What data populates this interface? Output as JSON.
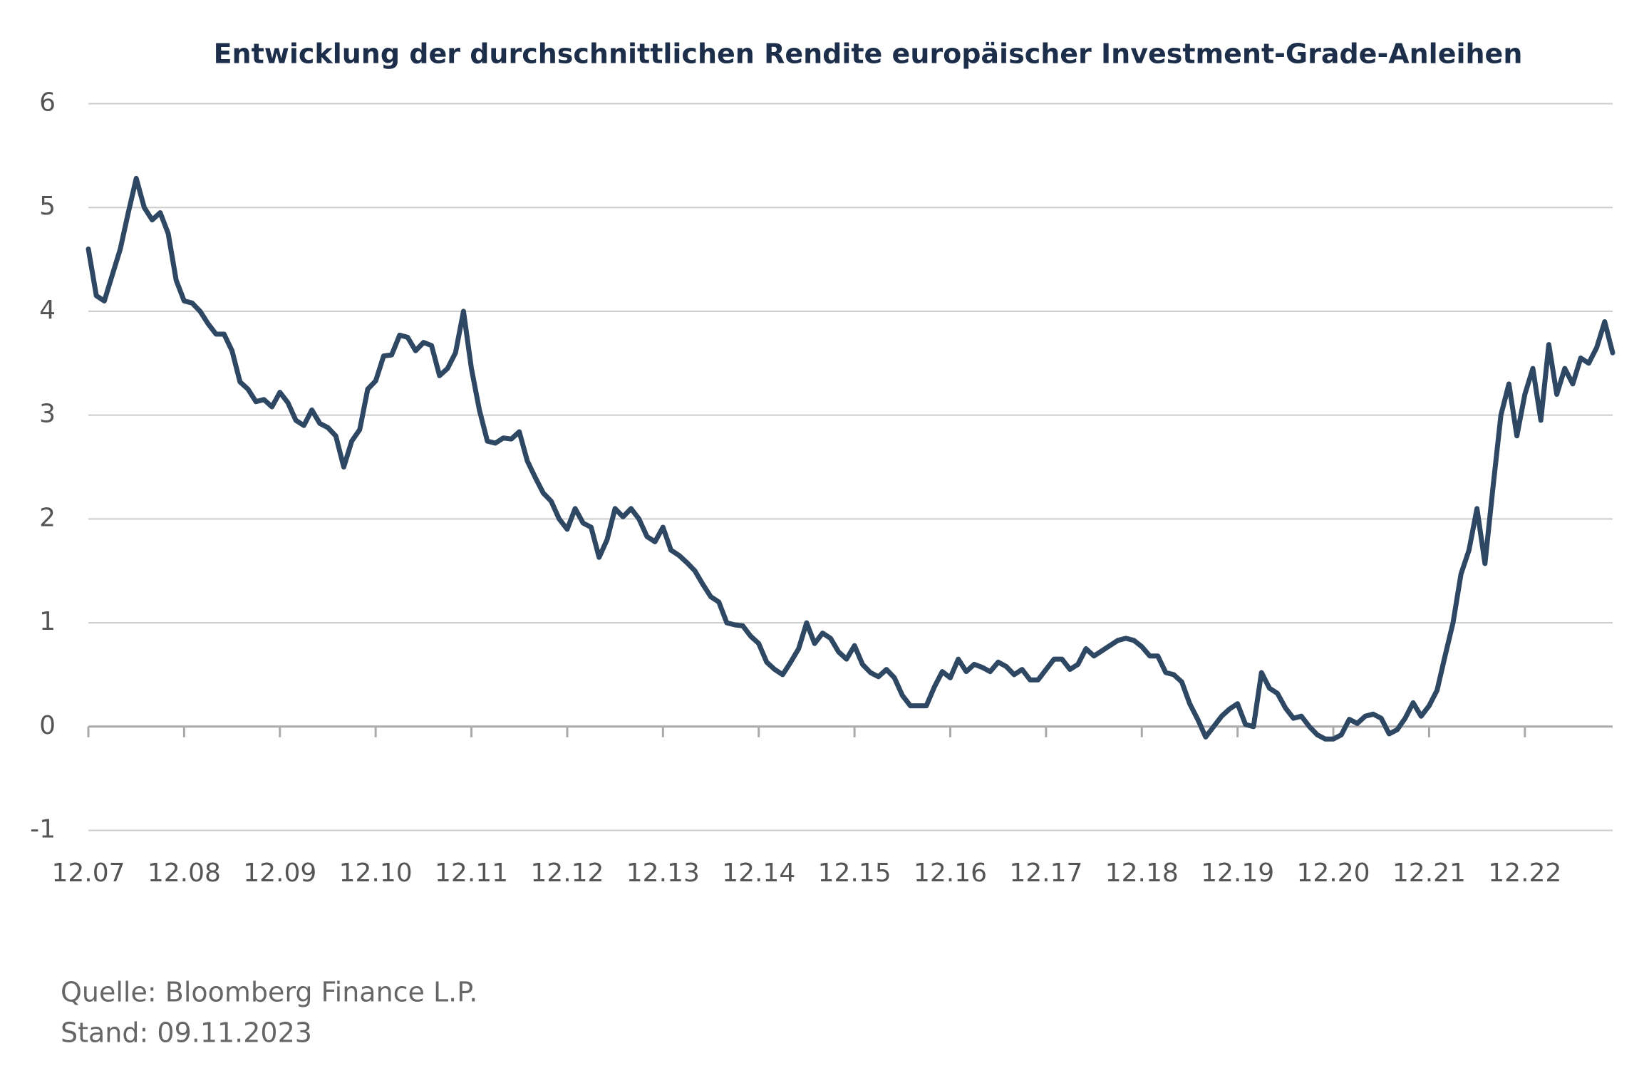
{
  "chart_data": {
    "type": "line",
    "title": "Entwicklung der durchschnittlichen Rendite europäischer Investment-Grade-Anleihen",
    "notes": [
      "Quelle: Bloomberg Finance L.P.",
      "Stand: 09.11.2023"
    ],
    "x": [
      "12.07",
      "01.08",
      "02.08",
      "03.08",
      "04.08",
      "05.08",
      "06.08",
      "07.08",
      "08.08",
      "09.08",
      "10.08",
      "11.08",
      "12.08",
      "01.09",
      "02.09",
      "03.09",
      "04.09",
      "05.09",
      "06.09",
      "07.09",
      "08.09",
      "09.09",
      "10.09",
      "11.09",
      "12.09",
      "01.10",
      "02.10",
      "03.10",
      "04.10",
      "05.10",
      "06.10",
      "07.10",
      "08.10",
      "09.10",
      "10.10",
      "11.10",
      "12.10",
      "01.11",
      "02.11",
      "03.11",
      "04.11",
      "05.11",
      "06.11",
      "07.11",
      "08.11",
      "09.11",
      "10.11",
      "11.11",
      "12.11",
      "01.12",
      "02.12",
      "03.12",
      "04.12",
      "05.12",
      "06.12",
      "07.12",
      "08.12",
      "09.12",
      "10.12",
      "11.12",
      "12.12",
      "01.13",
      "02.13",
      "03.13",
      "04.13",
      "05.13",
      "06.13",
      "07.13",
      "08.13",
      "09.13",
      "10.13",
      "11.13",
      "12.13",
      "01.14",
      "02.14",
      "03.14",
      "04.14",
      "05.14",
      "06.14",
      "07.14",
      "08.14",
      "09.14",
      "10.14",
      "11.14",
      "12.14",
      "01.15",
      "02.15",
      "03.15",
      "04.15",
      "05.15",
      "06.15",
      "07.15",
      "08.15",
      "09.15",
      "10.15",
      "11.15",
      "12.15",
      "01.16",
      "02.16",
      "03.16",
      "04.16",
      "05.16",
      "06.16",
      "07.16",
      "08.16",
      "09.16",
      "10.16",
      "11.16",
      "12.16",
      "01.17",
      "02.17",
      "03.17",
      "04.17",
      "05.17",
      "06.17",
      "07.17",
      "08.17",
      "09.17",
      "10.17",
      "11.17",
      "12.17",
      "01.18",
      "02.18",
      "03.18",
      "04.18",
      "05.18",
      "06.18",
      "07.18",
      "08.18",
      "09.18",
      "10.18",
      "11.18",
      "12.18",
      "01.19",
      "02.19",
      "03.19",
      "04.19",
      "05.19",
      "06.19",
      "07.19",
      "08.19",
      "09.19",
      "10.19",
      "11.19",
      "12.19",
      "01.20",
      "02.20",
      "03.20",
      "04.20",
      "05.20",
      "06.20",
      "07.20",
      "08.20",
      "09.20",
      "10.20",
      "11.20",
      "12.20",
      "01.21",
      "02.21",
      "03.21",
      "04.21",
      "05.21",
      "06.21",
      "07.21",
      "08.21",
      "09.21",
      "10.21",
      "11.21",
      "12.21",
      "01.22",
      "02.22",
      "03.22",
      "04.22",
      "05.22",
      "06.22",
      "07.22",
      "08.22",
      "09.22",
      "10.22",
      "11.22",
      "12.22",
      "01.23",
      "02.23",
      "03.23",
      "04.23",
      "05.23",
      "06.23",
      "07.23",
      "08.23",
      "09.23",
      "10.23",
      "11.23"
    ],
    "series": [
      {
        "color": "#2e4763",
        "values": [
          4.6,
          4.15,
          4.1,
          4.35,
          4.6,
          4.95,
          5.28,
          5.0,
          4.88,
          4.95,
          4.75,
          4.3,
          4.1,
          4.08,
          4.0,
          3.88,
          3.78,
          3.78,
          3.62,
          3.32,
          3.25,
          3.13,
          3.15,
          3.08,
          3.22,
          3.12,
          2.95,
          2.9,
          3.05,
          2.92,
          2.88,
          2.8,
          2.5,
          2.75,
          2.86,
          3.25,
          3.33,
          3.57,
          3.58,
          3.77,
          3.75,
          3.62,
          3.7,
          3.67,
          3.38,
          3.45,
          3.6,
          4.0,
          3.45,
          3.05,
          2.75,
          2.73,
          2.78,
          2.77,
          2.84,
          2.56,
          2.4,
          2.25,
          2.17,
          2.0,
          1.9,
          2.1,
          1.96,
          1.92,
          1.63,
          1.8,
          2.1,
          2.02,
          2.1,
          2.0,
          1.83,
          1.78,
          1.92,
          1.7,
          1.65,
          1.58,
          1.5,
          1.37,
          1.25,
          1.2,
          1.0,
          0.98,
          0.97,
          0.87,
          0.8,
          0.62,
          0.55,
          0.5,
          0.62,
          0.75,
          1.0,
          0.8,
          0.9,
          0.85,
          0.72,
          0.65,
          0.78,
          0.6,
          0.52,
          0.48,
          0.55,
          0.47,
          0.3,
          0.2,
          0.2,
          0.2,
          0.38,
          0.53,
          0.47,
          0.65,
          0.53,
          0.6,
          0.57,
          0.53,
          0.62,
          0.58,
          0.5,
          0.55,
          0.45,
          0.45,
          0.55,
          0.65,
          0.65,
          0.55,
          0.6,
          0.75,
          0.68,
          0.73,
          0.78,
          0.83,
          0.85,
          0.83,
          0.77,
          0.68,
          0.68,
          0.52,
          0.5,
          0.43,
          0.22,
          0.07,
          -0.1,
          0.0,
          0.1,
          0.17,
          0.22,
          0.02,
          0.0,
          0.52,
          0.37,
          0.32,
          0.18,
          0.08,
          0.1,
          0.0,
          -0.08,
          -0.12,
          -0.12,
          -0.08,
          0.07,
          0.03,
          0.1,
          0.12,
          0.08,
          -0.07,
          -0.03,
          0.08,
          0.23,
          0.1,
          0.2,
          0.35,
          0.68,
          1.0,
          1.47,
          1.7,
          2.1,
          1.57,
          2.3,
          3.0,
          3.3,
          2.8,
          3.2,
          3.45,
          2.95,
          3.68,
          3.2,
          3.45,
          3.3,
          3.55,
          3.5,
          3.65,
          3.9,
          3.6
        ]
      }
    ],
    "xlim": [
      "12.07",
      "11.23"
    ],
    "xticks": [
      "12.07",
      "12.08",
      "12.09",
      "12.10",
      "12.11",
      "12.12",
      "12.13",
      "12.14",
      "12.15",
      "12.16",
      "12.17",
      "12.18",
      "12.19",
      "12.20",
      "12.21",
      "12.22"
    ],
    "ylim": [
      -1,
      6
    ],
    "yticks": [
      -1,
      0,
      1,
      2,
      3,
      4,
      5,
      6
    ],
    "grid": true
  }
}
